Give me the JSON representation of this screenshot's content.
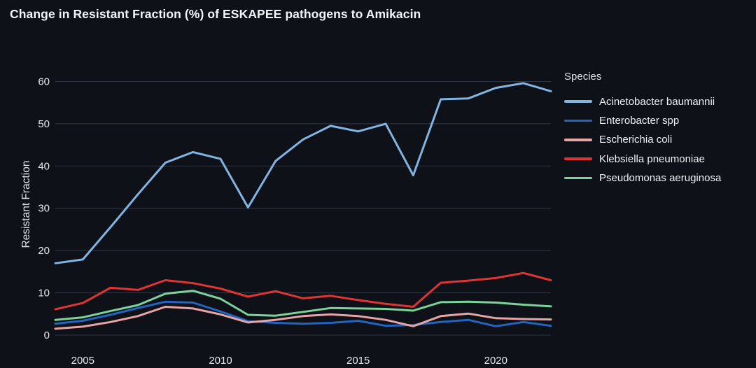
{
  "title": "Change in Resistant Fraction (%) of ESKAPEE pathogens to Amikacin",
  "y_axis": {
    "label": "Resistant Fraction",
    "ticks": [
      0,
      10,
      20,
      30,
      40,
      50,
      60
    ]
  },
  "x_axis": {
    "ticks": [
      2005,
      2010,
      2015,
      2020
    ]
  },
  "legend": {
    "title": "Species"
  },
  "colors": {
    "background": "#0e1118",
    "gridline": "#313845",
    "tick_text": "#e5e9ee",
    "title_text": "#f2f5f8"
  },
  "chart_data": {
    "type": "line",
    "title": "Change in Resistant Fraction (%) of ESKAPEE pathogens to Amikacin",
    "xlabel": "",
    "ylabel": "Resistant Fraction",
    "xlim": [
      2004,
      2022
    ],
    "ylim": [
      0,
      64
    ],
    "grid": "horizontal-only",
    "legend_position": "right-outside",
    "legend_title": "Species",
    "x": [
      2004,
      2005,
      2006,
      2007,
      2008,
      2009,
      2010,
      2011,
      2012,
      2013,
      2014,
      2015,
      2016,
      2017,
      2018,
      2019,
      2020,
      2021,
      2022
    ],
    "series": [
      {
        "name": "Acinetobacter baumannii",
        "color": "#82b4e1",
        "values": [
          17.0,
          17.9,
          25.5,
          33.3,
          40.8,
          43.3,
          41.7,
          30.2,
          41.2,
          46.3,
          49.5,
          48.2,
          50.0,
          37.8,
          55.8,
          56.0,
          58.5,
          59.6,
          57.7
        ]
      },
      {
        "name": "Enterobacter spp",
        "color": "#2065c0",
        "values": [
          2.7,
          3.4,
          4.8,
          6.4,
          7.9,
          7.7,
          5.6,
          3.3,
          2.9,
          2.7,
          2.9,
          3.4,
          2.2,
          2.4,
          3.1,
          3.6,
          2.1,
          3.1,
          2.2
        ]
      },
      {
        "name": "Escherichia coli",
        "color": "#e7a4a4",
        "values": [
          1.5,
          2.0,
          3.1,
          4.5,
          6.7,
          6.3,
          4.9,
          3.0,
          3.6,
          4.5,
          4.9,
          4.5,
          3.6,
          2.1,
          4.5,
          5.1,
          4.0,
          3.8,
          3.7
        ]
      },
      {
        "name": "Klebsiella pneumoniae",
        "color": "#de3434",
        "values": [
          6.1,
          7.6,
          11.2,
          10.7,
          13.0,
          12.3,
          11.0,
          9.1,
          10.4,
          8.7,
          9.3,
          8.3,
          7.4,
          6.7,
          12.4,
          12.9,
          13.5,
          14.7,
          13.0
        ]
      },
      {
        "name": "Pseudomonas aeruginosa",
        "color": "#7bd29b",
        "values": [
          3.6,
          4.2,
          5.7,
          7.1,
          9.8,
          10.5,
          8.6,
          4.8,
          4.6,
          5.5,
          6.4,
          6.3,
          6.2,
          5.8,
          7.8,
          7.9,
          7.7,
          7.2,
          6.8
        ]
      }
    ]
  }
}
